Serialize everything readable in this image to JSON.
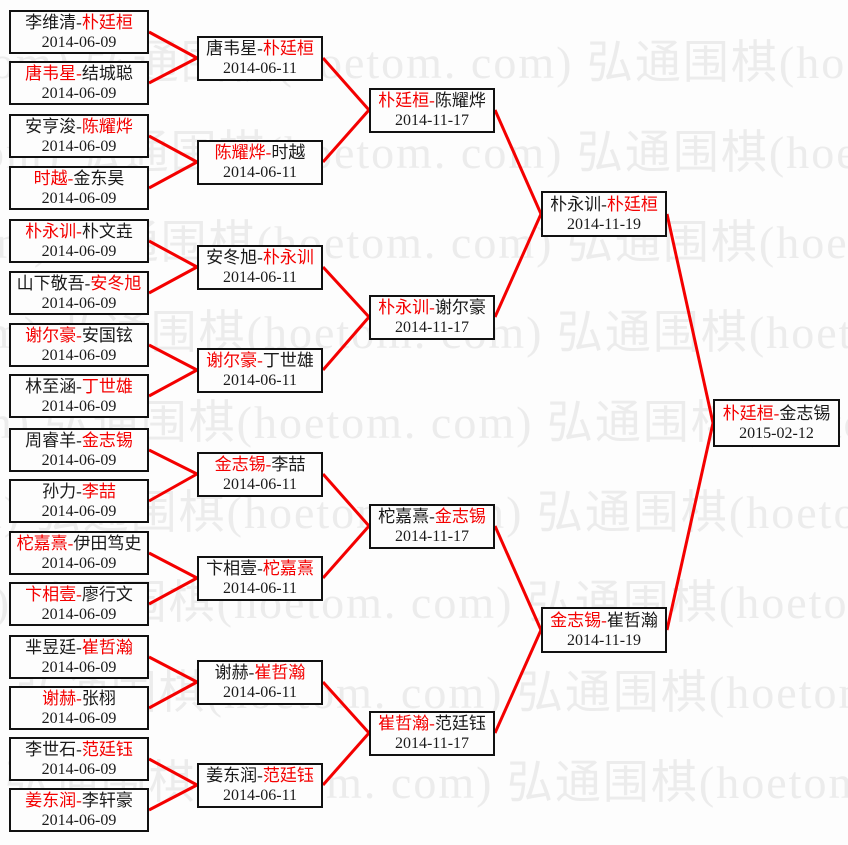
{
  "watermark": {
    "text": "弘通围棋(hoetom. com)",
    "color": "#ececec"
  },
  "separator": "-",
  "colors": {
    "winner_red": "#f40000",
    "line_red": "#f40000",
    "text_black": "#1a1a1a",
    "box_border": "#111111",
    "background": "#fdfdfd"
  },
  "rounds": [
    {
      "matches": [
        {
          "p1": "李维清",
          "p2": "朴廷桓",
          "winner": "p2",
          "date": "2014-06-09"
        },
        {
          "p1": "唐韦星",
          "p2": "结城聪",
          "winner": "p1",
          "date": "2014-06-09"
        },
        {
          "p1": "安亨浚",
          "p2": "陈耀烨",
          "winner": "p2",
          "date": "2014-06-09"
        },
        {
          "p1": "时越",
          "p2": "金东昊",
          "winner": "p1",
          "date": "2014-06-09"
        },
        {
          "p1": "朴永训",
          "p2": "朴文垚",
          "winner": "p1",
          "date": "2014-06-09"
        },
        {
          "p1": "山下敬吾",
          "p2": "安冬旭",
          "winner": "p2",
          "date": "2014-06-09"
        },
        {
          "p1": "谢尔豪",
          "p2": "安国铉",
          "winner": "p1",
          "date": "2014-06-09"
        },
        {
          "p1": "林至涵",
          "p2": "丁世雄",
          "winner": "p2",
          "date": "2014-06-09"
        },
        {
          "p1": "周睿羊",
          "p2": "金志锡",
          "winner": "p2",
          "date": "2014-06-09"
        },
        {
          "p1": "孙力",
          "p2": "李喆",
          "winner": "p2",
          "date": "2014-06-09"
        },
        {
          "p1": "柁嘉熹",
          "p2": "伊田笃史",
          "winner": "p1",
          "date": "2014-06-09"
        },
        {
          "p1": "卞相壹",
          "p2": "廖行文",
          "winner": "p1",
          "date": "2014-06-09"
        },
        {
          "p1": "芈昱廷",
          "p2": "崔哲瀚",
          "winner": "p2",
          "date": "2014-06-09"
        },
        {
          "p1": "谢赫",
          "p2": "张栩",
          "winner": "p1",
          "date": "2014-06-09"
        },
        {
          "p1": "李世石",
          "p2": "范廷钰",
          "winner": "p2",
          "date": "2014-06-09"
        },
        {
          "p1": "姜东润",
          "p2": "李轩豪",
          "winner": "p1",
          "date": "2014-06-09"
        }
      ]
    },
    {
      "matches": [
        {
          "p1": "唐韦星",
          "p2": "朴廷桓",
          "winner": "p2",
          "date": "2014-06-11"
        },
        {
          "p1": "陈耀烨",
          "p2": "时越",
          "winner": "p1",
          "date": "2014-06-11"
        },
        {
          "p1": "安冬旭",
          "p2": "朴永训",
          "winner": "p2",
          "date": "2014-06-11"
        },
        {
          "p1": "谢尔豪",
          "p2": "丁世雄",
          "winner": "p1",
          "date": "2014-06-11"
        },
        {
          "p1": "金志锡",
          "p2": "李喆",
          "winner": "p1",
          "date": "2014-06-11"
        },
        {
          "p1": "卞相壹",
          "p2": "柁嘉熹",
          "winner": "p2",
          "date": "2014-06-11"
        },
        {
          "p1": "谢赫",
          "p2": "崔哲瀚",
          "winner": "p2",
          "date": "2014-06-11"
        },
        {
          "p1": "姜东润",
          "p2": "范廷钰",
          "winner": "p2",
          "date": "2014-06-11"
        }
      ]
    },
    {
      "matches": [
        {
          "p1": "朴廷桓",
          "p2": "陈耀烨",
          "winner": "p1",
          "date": "2014-11-17"
        },
        {
          "p1": "朴永训",
          "p2": "谢尔豪",
          "winner": "p1",
          "date": "2014-11-17"
        },
        {
          "p1": "柁嘉熹",
          "p2": "金志锡",
          "winner": "p2",
          "date": "2014-11-17"
        },
        {
          "p1": "崔哲瀚",
          "p2": "范廷钰",
          "winner": "p1",
          "date": "2014-11-17"
        }
      ]
    },
    {
      "matches": [
        {
          "p1": "朴永训",
          "p2": "朴廷桓",
          "winner": "p2",
          "date": "2014-11-19"
        },
        {
          "p1": "金志锡",
          "p2": "崔哲瀚",
          "winner": "p1",
          "date": "2014-11-19"
        }
      ]
    },
    {
      "matches": [
        {
          "p1": "朴廷桓",
          "p2": "金志锡",
          "winner": "p1",
          "date": "2015-02-12"
        }
      ]
    }
  ]
}
